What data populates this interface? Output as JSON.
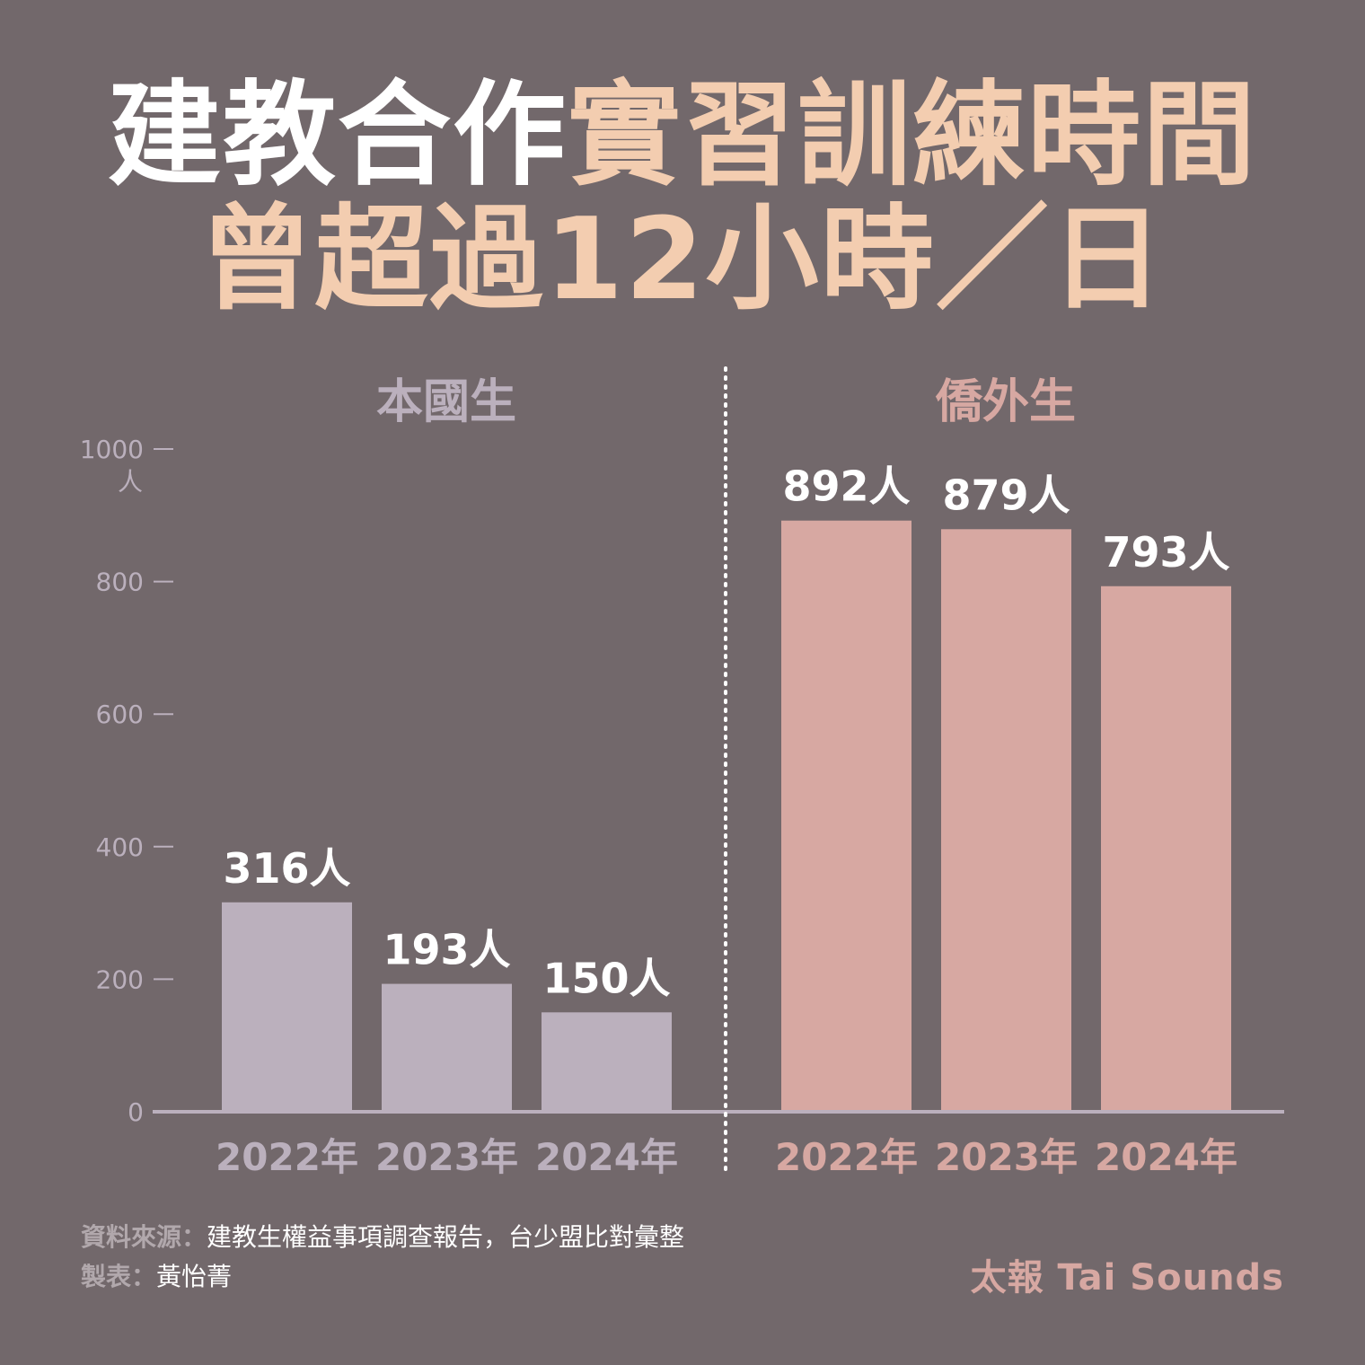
{
  "title": {
    "line1_white": "建教合作",
    "line1_peach": "實習訓練時間",
    "line2": "曾超過12小時／日"
  },
  "chart_data": {
    "type": "bar",
    "y_ticks": [
      "1000",
      "800",
      "600",
      "400",
      "200",
      "0"
    ],
    "y_unit": "人",
    "ylim": [
      0,
      1000
    ],
    "grid": false,
    "colors": {
      "domestic": "#bbb0bd",
      "overseas": "#d7a8a2",
      "domestic_label": "#bbb0bd",
      "overseas_label": "#d7a8a2",
      "value_label": "#ffffff",
      "axis": "#bbb0bd"
    },
    "groups": [
      {
        "name": "本國生",
        "categories": [
          "2022年",
          "2023年",
          "2024年"
        ],
        "values": [
          316,
          193,
          150
        ],
        "value_labels": [
          "316人",
          "193人",
          "150人"
        ]
      },
      {
        "name": "僑外生",
        "categories": [
          "2022年",
          "2023年",
          "2024年"
        ],
        "values": [
          892,
          879,
          793
        ],
        "value_labels": [
          "892人",
          "879人",
          "793人"
        ]
      }
    ]
  },
  "footer": {
    "source_label": "資料來源：",
    "source_text": "建教生權益事項調查報告，台少盟比對彙整",
    "maker_label": "製表：",
    "maker_text": "黃怡菁",
    "brand": "太報 Tai Sounds"
  }
}
